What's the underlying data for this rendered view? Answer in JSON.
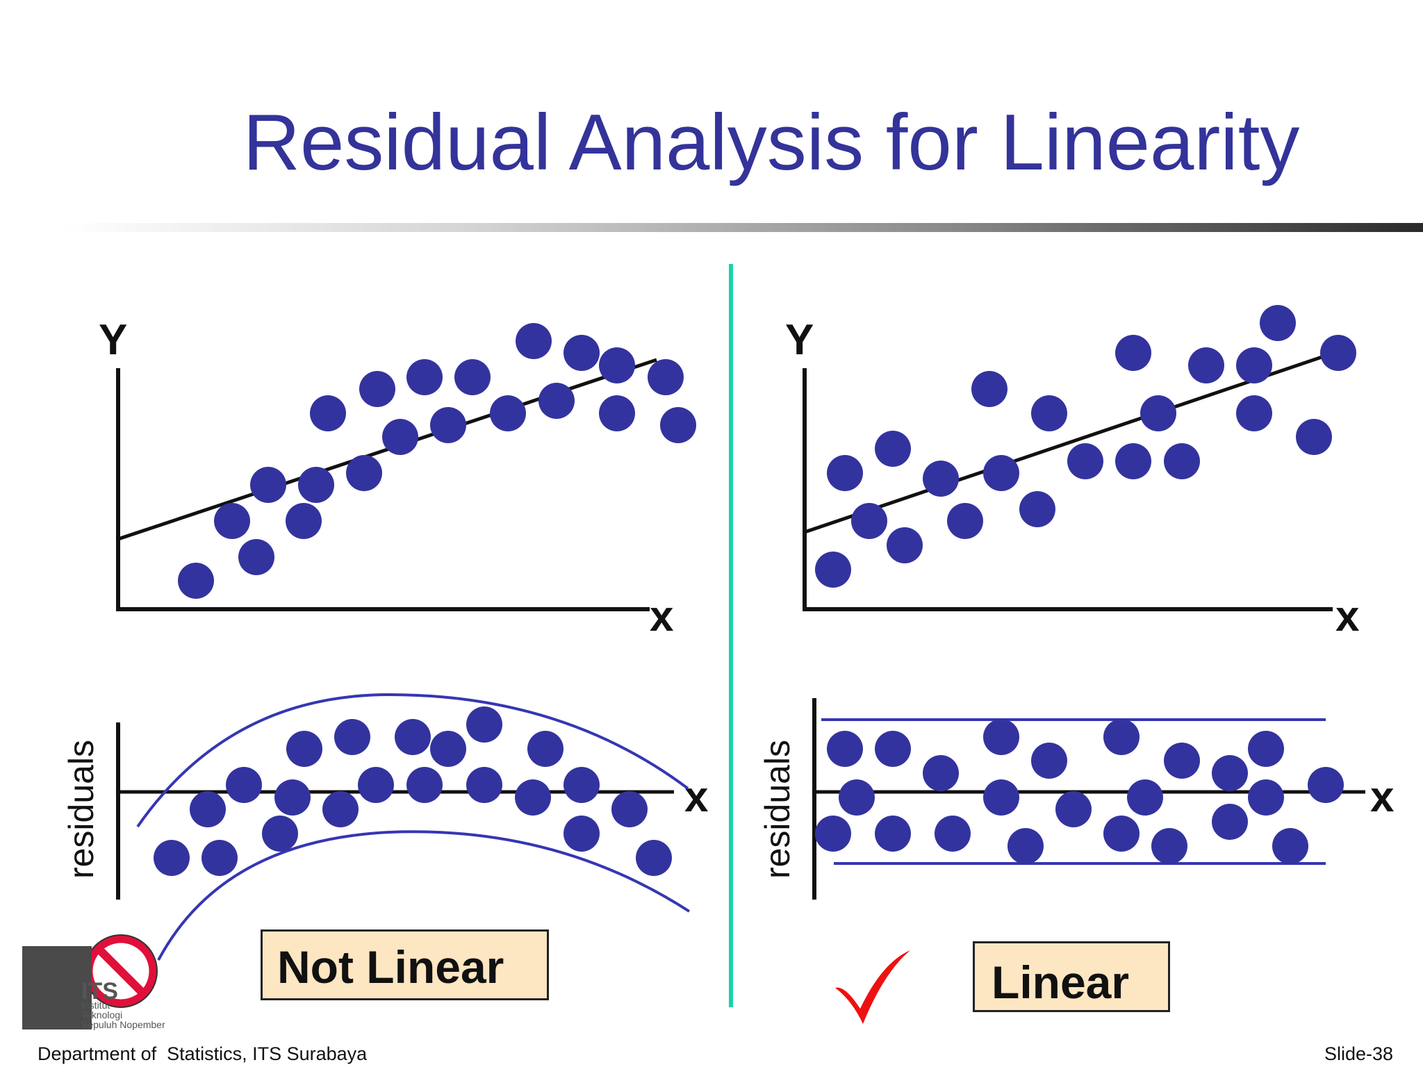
{
  "slide": {
    "title": "Residual Analysis for Linearity",
    "footer_left": "Department of  Statistics, ITS Surabaya",
    "footer_right": "Slide-38"
  },
  "panels": {
    "left": {
      "scatter": {
        "y_label": "Y",
        "x_label": "x"
      },
      "residuals": {
        "y_label": "residuals",
        "x_label": "x"
      },
      "verdict": "Not Linear",
      "verdict_icon": "no-entry-icon"
    },
    "right": {
      "scatter": {
        "y_label": "Y",
        "x_label": "x"
      },
      "residuals": {
        "y_label": "residuals",
        "x_label": "x"
      },
      "verdict": "Linear",
      "verdict_icon": "checkmark-icon"
    }
  },
  "logo": {
    "abbr": "ITS",
    "line1": "Institut",
    "line2": "Teknologi",
    "line3": "Sepuluh Nopember"
  },
  "colors": {
    "title": "#33339a",
    "points": "#33339f",
    "divider": "#19d4a8",
    "check": "#ee1111",
    "no_entry": "#e0103a",
    "verdict_fill": "#fde6c2",
    "band_line": "#3636b4"
  }
}
